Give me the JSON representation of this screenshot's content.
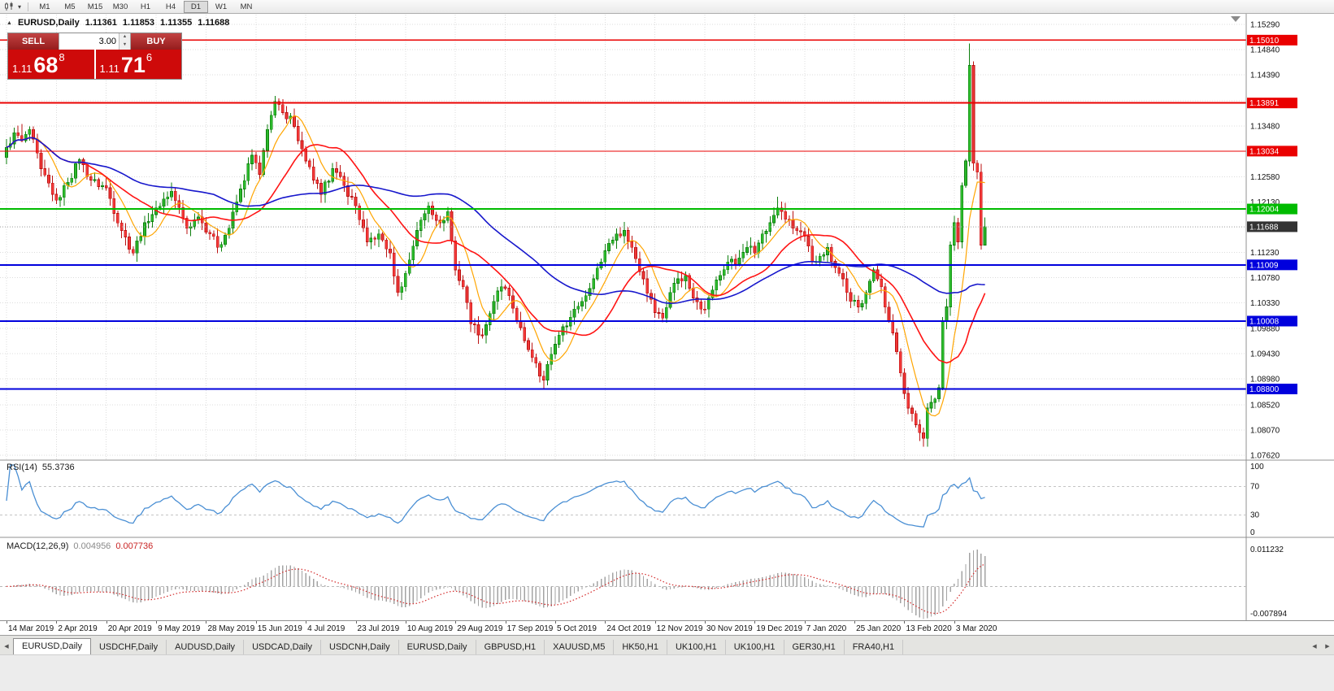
{
  "icons": {
    "caret": "▾",
    "header_marker": "▲",
    "spin_up": "▲",
    "spin_down": "▼",
    "tab_left": "◀",
    "tab_right": "▶"
  },
  "toolbar": {
    "timeframes": [
      "M1",
      "M5",
      "M15",
      "M30",
      "H1",
      "H4",
      "D1",
      "W1",
      "MN"
    ],
    "active_timeframe": "D1"
  },
  "chart": {
    "symbol_period": "EURUSD,Daily",
    "ohlc": {
      "open": "1.11361",
      "high": "1.11853",
      "low": "1.11355",
      "close": "1.11688"
    }
  },
  "trade_panel": {
    "sell_label": "SELL",
    "buy_label": "BUY",
    "volume": "3.00",
    "sell_price_big": "1.11",
    "sell_price_mid": "68",
    "sell_price_sup": "8",
    "buy_price_big": "1.11",
    "buy_price_mid": "71",
    "buy_price_sup": "6"
  },
  "price_axis": {
    "labels": [
      "1.15290",
      "1.14840",
      "1.14390",
      "1.13930",
      "1.13480",
      "1.13030",
      "1.12580",
      "1.12130",
      "1.11680",
      "1.11230",
      "1.10780",
      "1.10330",
      "1.09880",
      "1.09430",
      "1.08980",
      "1.08520",
      "1.08070",
      "1.07620"
    ]
  },
  "horizontal_lines": [
    {
      "price": "1.15010",
      "value": 1.1501,
      "color": "#ea0000",
      "width": 1.4
    },
    {
      "price": "1.13891",
      "value": 1.13891,
      "color": "#ea0000",
      "width": 2
    },
    {
      "price": "1.13034",
      "value": 1.13034,
      "color": "#ea0000",
      "width": 1.2
    },
    {
      "price": "1.12004",
      "value": 1.12004,
      "color": "#00bb00",
      "width": 2.2
    },
    {
      "price": "1.11009",
      "value": 1.11009,
      "color": "#0000dd",
      "width": 2
    },
    {
      "price": "1.10008",
      "value": 1.10008,
      "color": "#0000dd",
      "width": 2
    },
    {
      "price": "1.08800",
      "value": 1.088,
      "color": "#0000dd",
      "width": 2
    }
  ],
  "current_price_tag": {
    "label": "1.11688",
    "value": 1.11688,
    "bg": "#333333"
  },
  "rsi": {
    "name": "RSI(14)",
    "value": "55.3736",
    "period": 14,
    "color": "#4a8fd4",
    "levels": [
      {
        "label": "100",
        "v": 100
      },
      {
        "label": "70",
        "v": 70
      },
      {
        "label": "30",
        "v": 30
      },
      {
        "label": "0",
        "v": 0
      }
    ]
  },
  "macd": {
    "name": "MACD(12,26,9)",
    "value_main": "0.004956",
    "value_signal": "0.007736",
    "fast": 12,
    "slow": 26,
    "signal_period": 9,
    "max": 0.011232,
    "min": -0.007894,
    "axis_labels": [
      {
        "label": "0.011232",
        "pos": "top"
      },
      {
        "label": "-0.007894",
        "pos": "bottom"
      }
    ]
  },
  "tabs": {
    "active_index": 0,
    "items": [
      "EURUSD,Daily",
      "USDCHF,Daily",
      "AUDUSD,Daily",
      "USDCAD,Daily",
      "USDCNH,Daily",
      "EURUSD,Daily",
      "GBPUSD,H1",
      "XAUUSD,M5",
      "HK50,H1",
      "UK100,H1",
      "UK100,H1",
      "GER30,H1",
      "FRA40,H1"
    ]
  },
  "colors": {
    "bull_fill": "#2cb92c",
    "bull_edge": "#0d7f0d",
    "bear_fill": "#f23838",
    "bear_edge": "#bb1212",
    "ma_fast": "#ffa500",
    "ma_med": "#ff1414",
    "ma_slow": "#1717cc",
    "grid": "#dcdcdc",
    "axis_text": "#111111",
    "macd_hist": "#a3a3a3",
    "macd_signal": "#d32828",
    "bid_line": "#ababab"
  },
  "chart_data": {
    "type": "candlestick",
    "symbol": "EURUSD",
    "timeframe": "Daily",
    "n_candles": 256,
    "first_open": 1.1292,
    "close_anchors": [
      [
        0,
        1.131
      ],
      [
        2,
        1.1336
      ],
      [
        4,
        1.1322
      ],
      [
        6,
        1.1342
      ],
      [
        9,
        1.1272
      ],
      [
        13,
        1.1216
      ],
      [
        16,
        1.1248
      ],
      [
        19,
        1.1288
      ],
      [
        22,
        1.1252
      ],
      [
        26,
        1.1238
      ],
      [
        30,
        1.1162
      ],
      [
        33,
        1.1122
      ],
      [
        36,
        1.1176
      ],
      [
        39,
        1.1202
      ],
      [
        43,
        1.1232
      ],
      [
        47,
        1.1166
      ],
      [
        50,
        1.1186
      ],
      [
        53,
        1.1156
      ],
      [
        55,
        1.1132
      ],
      [
        58,
        1.1166
      ],
      [
        61,
        1.1236
      ],
      [
        64,
        1.1296
      ],
      [
        66,
        1.1262
      ],
      [
        68,
        1.1342
      ],
      [
        70,
        1.1392
      ],
      [
        72,
        1.1372
      ],
      [
        74,
        1.1366
      ],
      [
        76,
        1.1322
      ],
      [
        78,
        1.1286
      ],
      [
        80,
        1.1252
      ],
      [
        82,
        1.1226
      ],
      [
        85,
        1.1272
      ],
      [
        88,
        1.1242
      ],
      [
        91,
        1.1206
      ],
      [
        94,
        1.1142
      ],
      [
        97,
        1.1156
      ],
      [
        100,
        1.1122
      ],
      [
        102,
        1.1052
      ],
      [
        104,
        1.1086
      ],
      [
        107,
        1.1162
      ],
      [
        110,
        1.1206
      ],
      [
        113,
        1.1176
      ],
      [
        115,
        1.1196
      ],
      [
        117,
        1.1092
      ],
      [
        119,
        1.1062
      ],
      [
        121,
        1.0996
      ],
      [
        124,
        1.0976
      ],
      [
        127,
        1.1036
      ],
      [
        129,
        1.1062
      ],
      [
        131,
        1.1046
      ],
      [
        133,
        1.1002
      ],
      [
        135,
        1.0966
      ],
      [
        138,
        1.0926
      ],
      [
        140,
        1.0896
      ],
      [
        142,
        1.0942
      ],
      [
        144,
        1.0976
      ],
      [
        146,
        1.0992
      ],
      [
        148,
        1.1022
      ],
      [
        151,
        1.1046
      ],
      [
        153,
        1.1076
      ],
      [
        156,
        1.1126
      ],
      [
        159,
        1.1156
      ],
      [
        161,
        1.1162
      ],
      [
        163,
        1.1132
      ],
      [
        166,
        1.1076
      ],
      [
        169,
        1.1016
      ],
      [
        171,
        1.1006
      ],
      [
        173,
        1.1052
      ],
      [
        175,
        1.1076
      ],
      [
        177,
        1.1082
      ],
      [
        179,
        1.1042
      ],
      [
        182,
        1.1022
      ],
      [
        184,
        1.1056
      ],
      [
        186,
        1.1082
      ],
      [
        188,
        1.1106
      ],
      [
        190,
        1.1102
      ],
      [
        193,
        1.1132
      ],
      [
        195,
        1.1122
      ],
      [
        197,
        1.1156
      ],
      [
        199,
        1.1176
      ],
      [
        201,
        1.1202
      ],
      [
        203,
        1.1182
      ],
      [
        205,
        1.1166
      ],
      [
        208,
        1.1152
      ],
      [
        210,
        1.1106
      ],
      [
        212,
        1.1116
      ],
      [
        214,
        1.1132
      ],
      [
        216,
        1.1096
      ],
      [
        218,
        1.1076
      ],
      [
        220,
        1.1036
      ],
      [
        222,
        1.1026
      ],
      [
        224,
        1.1052
      ],
      [
        226,
        1.1092
      ],
      [
        228,
        1.1062
      ],
      [
        230,
        1.1002
      ],
      [
        232,
        1.0946
      ],
      [
        234,
        1.0872
      ],
      [
        236,
        1.0836
      ],
      [
        238,
        1.0802
      ],
      [
        239,
        1.0792
      ],
      [
        240,
        1.0846
      ],
      [
        241,
        1.0856
      ],
      [
        242,
        1.0862
      ],
      [
        243,
        1.0882
      ],
      [
        244,
        1.1
      ],
      [
        245,
        1.1026
      ],
      [
        246,
        1.1136
      ],
      [
        247,
        1.1176
      ],
      [
        248,
        1.1142
      ],
      [
        249,
        1.1242
      ],
      [
        250,
        1.1286
      ],
      [
        251,
        1.1456
      ],
      [
        252,
        1.1282
      ],
      [
        253,
        1.1266
      ],
      [
        254,
        1.11361
      ],
      [
        255,
        1.11688
      ]
    ],
    "wick_overrides": {
      "0": {
        "low": 1.128
      },
      "4": {
        "high": 1.1352
      },
      "70": {
        "high": 1.1402
      },
      "140": {
        "low": 1.0879
      },
      "201": {
        "high": 1.1222
      },
      "239": {
        "low": 1.0777
      },
      "251": {
        "high": 1.1495
      },
      "255": {
        "high": 1.11853,
        "low": 1.11355
      }
    },
    "moving_averages": [
      {
        "name": "fast",
        "period": 8
      },
      {
        "name": "medium",
        "period": 20
      },
      {
        "name": "slow",
        "period": 55
      }
    ],
    "x_labels": [
      "14 Mar 2019",
      "2 Apr 2019",
      "20 Apr 2019",
      "9 May 2019",
      "28 May 2019",
      "15 Jun 2019",
      "4 Jul 2019",
      "23 Jul 2019",
      "10 Aug 2019",
      "29 Aug 2019",
      "17 Sep 2019",
      "5 Oct 2019",
      "24 Oct 2019",
      "12 Nov 2019",
      "30 Nov 2019",
      "19 Dec 2019",
      "7 Jan 2020",
      "25 Jan 2020",
      "13 Feb 2020",
      "3 Mar 2020"
    ],
    "candles_per_label": 13
  }
}
